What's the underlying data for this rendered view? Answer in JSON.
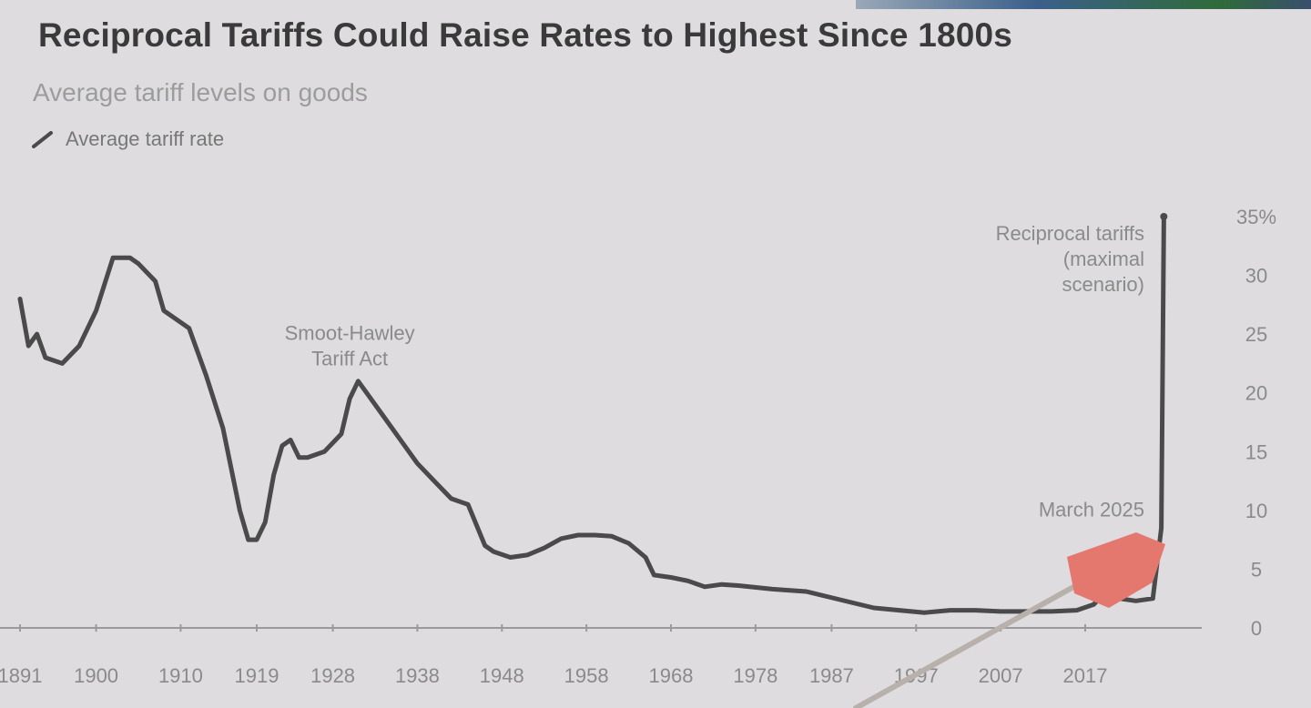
{
  "chart_data": {
    "type": "line",
    "title": "Reciprocal Tariffs Could Raise Rates to Highest Since 1800s",
    "subtitle": "Average tariff levels on goods",
    "legend": [
      "Average tariff rate"
    ],
    "legend_position": "top-left",
    "series": [
      {
        "name": "Average tariff rate",
        "color": "#4a4a4a",
        "points": [
          [
            1891,
            28
          ],
          [
            1892,
            24
          ],
          [
            1893,
            25
          ],
          [
            1894,
            23
          ],
          [
            1896,
            22.5
          ],
          [
            1898,
            24
          ],
          [
            1900,
            27
          ],
          [
            1902,
            31.5
          ],
          [
            1904,
            31.5
          ],
          [
            1905,
            31
          ],
          [
            1907,
            29.5
          ],
          [
            1908,
            27
          ],
          [
            1910,
            26
          ],
          [
            1911,
            25.5
          ],
          [
            1913,
            21.5
          ],
          [
            1915,
            17
          ],
          [
            1917,
            10
          ],
          [
            1918,
            7.5
          ],
          [
            1919,
            7.5
          ],
          [
            1920,
            9
          ],
          [
            1921,
            13
          ],
          [
            1922,
            15.5
          ],
          [
            1923,
            16
          ],
          [
            1924,
            14.5
          ],
          [
            1925,
            14.5
          ],
          [
            1927,
            15
          ],
          [
            1929,
            16.5
          ],
          [
            1930,
            19.5
          ],
          [
            1931,
            21
          ],
          [
            1932,
            20
          ],
          [
            1934,
            18
          ],
          [
            1936,
            16
          ],
          [
            1938,
            14
          ],
          [
            1940,
            12.5
          ],
          [
            1942,
            11
          ],
          [
            1944,
            10.5
          ],
          [
            1946,
            7
          ],
          [
            1947,
            6.5
          ],
          [
            1949,
            6
          ],
          [
            1951,
            6.2
          ],
          [
            1953,
            6.8
          ],
          [
            1955,
            7.6
          ],
          [
            1957,
            7.9
          ],
          [
            1959,
            7.9
          ],
          [
            1961,
            7.8
          ],
          [
            1963,
            7.2
          ],
          [
            1965,
            6
          ],
          [
            1966,
            4.5
          ],
          [
            1968,
            4.3
          ],
          [
            1970,
            4
          ],
          [
            1972,
            3.5
          ],
          [
            1974,
            3.7
          ],
          [
            1976,
            3.6
          ],
          [
            1980,
            3.3
          ],
          [
            1984,
            3.1
          ],
          [
            1988,
            2.4
          ],
          [
            1992,
            1.7
          ],
          [
            1995,
            1.5
          ],
          [
            1998,
            1.3
          ],
          [
            2001,
            1.5
          ],
          [
            2004,
            1.5
          ],
          [
            2007,
            1.4
          ],
          [
            2010,
            1.4
          ],
          [
            2013,
            1.4
          ],
          [
            2016,
            1.5
          ],
          [
            2018,
            2
          ],
          [
            2019,
            2.7
          ],
          [
            2021,
            2.5
          ],
          [
            2023,
            2.3
          ],
          [
            2025,
            2.5
          ],
          [
            2026,
            8.5
          ],
          [
            2026.3,
            35
          ]
        ]
      }
    ],
    "annotations": [
      {
        "text_lines": [
          "Smoot-Hawley",
          "Tariff Act"
        ],
        "x": 1930,
        "y": 24.5
      },
      {
        "text_lines": [
          "Reciprocal tariffs",
          "(maximal",
          "scenario)"
        ],
        "x": 2024,
        "y": 33
      },
      {
        "text_lines": [
          "March 2025"
        ],
        "x": 2024,
        "y": 9.5
      }
    ],
    "x_ticks": [
      {
        "value": 1891,
        "label": "1891"
      },
      {
        "value": 1900,
        "label": "1900"
      },
      {
        "value": 1910,
        "label": "1910"
      },
      {
        "value": 1919,
        "label": "1919"
      },
      {
        "value": 1928,
        "label": "1928"
      },
      {
        "value": 1938,
        "label": "1938"
      },
      {
        "value": 1948,
        "label": "1948"
      },
      {
        "value": 1958,
        "label": "1958"
      },
      {
        "value": 1968,
        "label": "1968"
      },
      {
        "value": 1978,
        "label": "1978"
      },
      {
        "value": 1987,
        "label": "1987"
      },
      {
        "value": 1997,
        "label": "1997"
      },
      {
        "value": 2007,
        "label": "2007"
      },
      {
        "value": 2017,
        "label": "2017"
      }
    ],
    "y_ticks": [
      {
        "value": 0,
        "label": "0"
      },
      {
        "value": 5,
        "label": "5"
      },
      {
        "value": 10,
        "label": "10"
      },
      {
        "value": 15,
        "label": "15"
      },
      {
        "value": 20,
        "label": "20"
      },
      {
        "value": 25,
        "label": "25"
      },
      {
        "value": 30,
        "label": "30"
      },
      {
        "value": 35,
        "label": "35%"
      }
    ],
    "xlim": [
      1891,
      2030
    ],
    "ylim": [
      0,
      35
    ],
    "y_axis_side": "right",
    "grid": false
  }
}
